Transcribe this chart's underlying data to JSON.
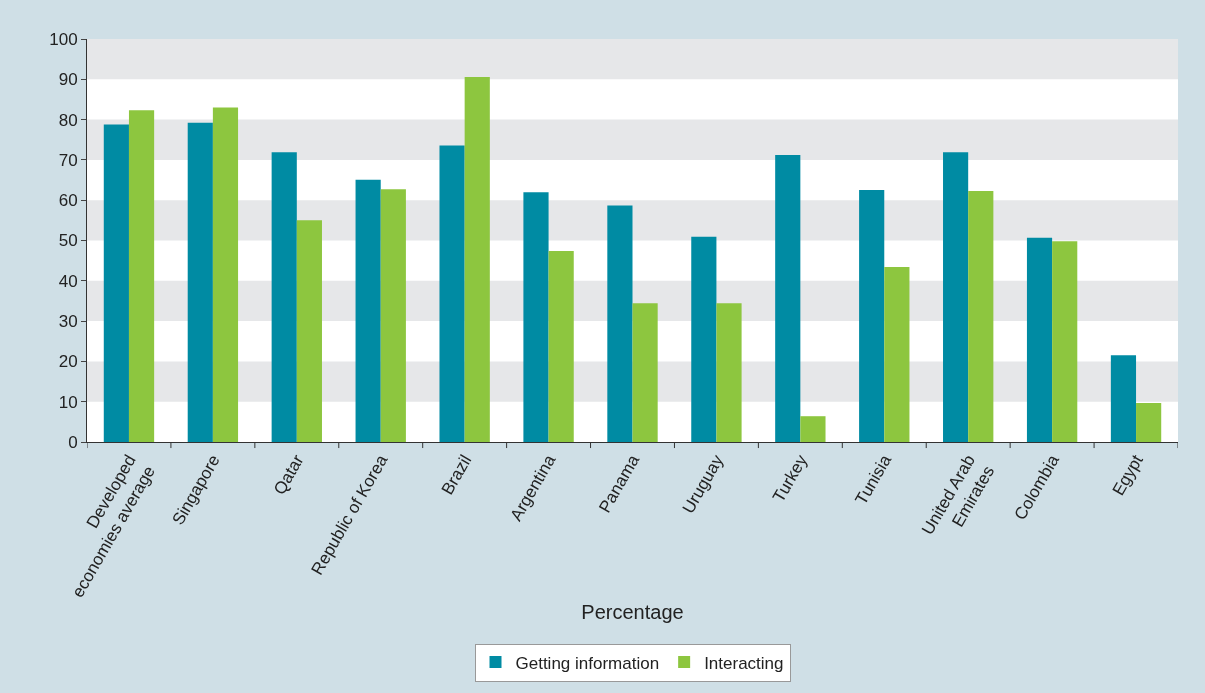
{
  "chart_data": {
    "type": "bar",
    "xlabel": "Percentage",
    "categories": [
      "Developed economies average",
      "Singapore",
      "Qatar",
      "Republic of Korea",
      "Brazil",
      "Argentina",
      "Panama",
      "Uruguay",
      "Turkey",
      "Tunisia",
      "United Arab Emirates",
      "Colombia",
      "Egypt"
    ],
    "series": [
      {
        "name": "Getting information",
        "color": "#008ba3",
        "values": [
          78.8,
          79.2,
          71.9,
          65.1,
          73.6,
          62.0,
          58.7,
          50.9,
          71.2,
          62.5,
          71.9,
          50.7,
          21.5
        ]
      },
      {
        "name": "Interacting",
        "color": "#8dc63f",
        "values": [
          82.3,
          83.0,
          55.0,
          62.7,
          90.6,
          47.4,
          34.4,
          34.4,
          6.4,
          43.4,
          62.3,
          49.8,
          9.7
        ]
      }
    ],
    "ylim": [
      0,
      100
    ],
    "yticks": [
      0,
      10,
      20,
      30,
      40,
      50,
      60,
      70,
      80,
      90,
      100
    ],
    "bands": [
      {
        "axis": "y",
        "from": 90,
        "to": 100,
        "color": "#e6e7e9"
      },
      {
        "axis": "y",
        "from": 70,
        "to": 80,
        "color": "#e6e7e9"
      },
      {
        "axis": "y",
        "from": 50,
        "to": 60,
        "color": "#e6e7e9"
      },
      {
        "axis": "y",
        "from": 30,
        "to": 40,
        "color": "#e6e7e9"
      },
      {
        "axis": "y",
        "from": 10,
        "to": 20,
        "color": "#e6e7e9"
      }
    ],
    "legend": "bottom"
  }
}
